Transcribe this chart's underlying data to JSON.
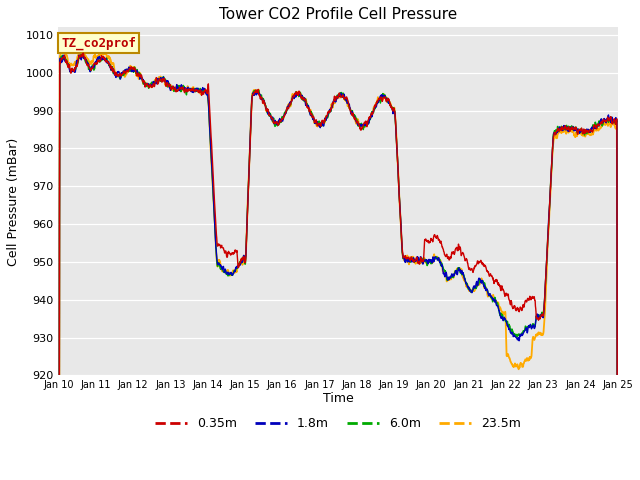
{
  "title": "Tower CO2 Profile Cell Pressure",
  "ylabel": "Cell Pressure (mBar)",
  "xlabel": "Time",
  "annotation_text": "TZ_co2prof",
  "annotation_bg": "#ffffcc",
  "annotation_border": "#bb8800",
  "ylim": [
    920,
    1012
  ],
  "yticks": [
    920,
    930,
    940,
    950,
    960,
    970,
    980,
    990,
    1000,
    1010
  ],
  "plot_bg": "#e8e8e8",
  "fig_bg": "#ffffff",
  "series_colors": [
    "#cc0000",
    "#0000bb",
    "#00aa00",
    "#ffaa00"
  ],
  "series_lw": [
    1.0,
    1.0,
    1.0,
    1.3
  ],
  "series_labels": [
    "0.35m",
    "1.8m",
    "6.0m",
    "23.5m"
  ],
  "x_start_day": 10,
  "x_end_day": 25,
  "xtick_days": [
    10,
    11,
    12,
    13,
    14,
    15,
    16,
    17,
    18,
    19,
    20,
    21,
    22,
    23,
    24,
    25
  ],
  "title_fontsize": 11,
  "label_fontsize": 9,
  "tick_fontsize": 8
}
